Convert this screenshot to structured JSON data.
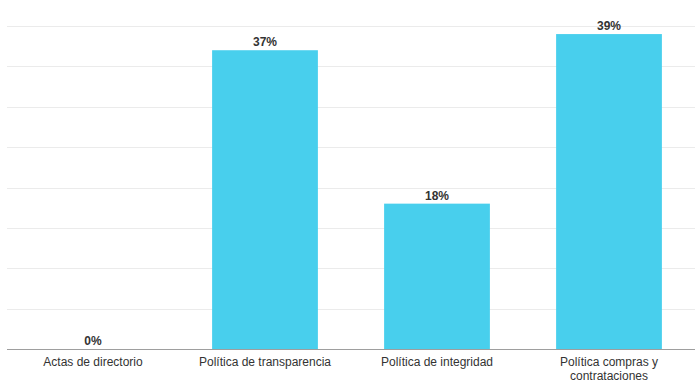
{
  "chart_data": {
    "type": "bar",
    "categories": [
      "Actas de directorio",
      "Política de transparencia",
      "Política de integridad",
      "Política compras y contrataciones"
    ],
    "values": [
      0,
      37,
      18,
      39
    ],
    "value_labels": [
      "0%",
      "37%",
      "18%",
      "39%"
    ],
    "color": "#48cfed",
    "ylim": [
      0,
      40
    ],
    "yticks": [
      0,
      5,
      10,
      15,
      20,
      25,
      30,
      35,
      40
    ],
    "grid": true,
    "data_labels": true,
    "tick_labels": "x"
  }
}
